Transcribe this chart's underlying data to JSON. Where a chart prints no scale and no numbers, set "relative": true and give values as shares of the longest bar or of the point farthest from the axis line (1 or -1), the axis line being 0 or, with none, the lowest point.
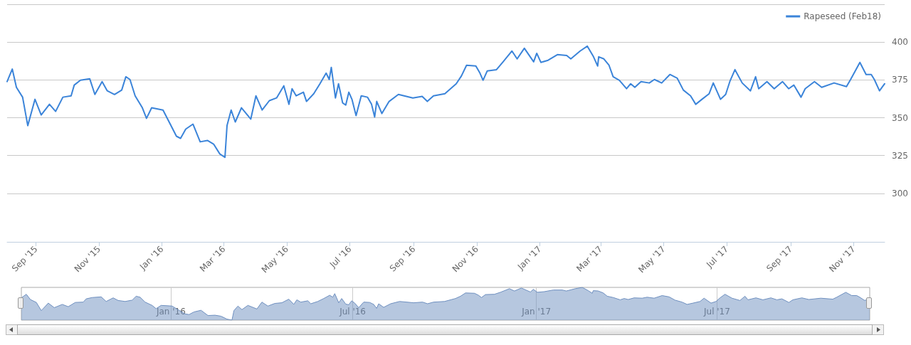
{
  "chart_data": [
    {
      "type": "line",
      "series": [
        {
          "name": "Rapeseed (Feb18)",
          "color": "#3b84d9",
          "x": [
            "2015-08-04",
            "2015-08-09",
            "2015-08-13",
            "2015-08-19",
            "2015-08-24",
            "2015-08-31",
            "2015-09-06",
            "2015-09-14",
            "2015-09-20",
            "2015-09-27",
            "2015-10-05",
            "2015-10-08",
            "2015-10-14",
            "2015-10-23",
            "2015-10-28",
            "2015-11-04",
            "2015-11-09",
            "2015-11-16",
            "2015-11-23",
            "2015-11-27",
            "2015-12-01",
            "2015-12-06",
            "2015-12-13",
            "2015-12-17",
            "2015-12-22",
            "2016-01-02",
            "2016-01-09",
            "2016-01-15",
            "2016-01-19",
            "2016-01-24",
            "2016-01-31",
            "2016-02-07",
            "2016-02-14",
            "2016-02-20",
            "2016-02-26",
            "2016-03-02",
            "2016-03-04",
            "2016-03-08",
            "2016-03-12",
            "2016-03-18",
            "2016-03-27",
            "2016-04-01",
            "2016-04-07",
            "2016-04-14",
            "2016-04-21",
            "2016-04-28",
            "2016-05-03",
            "2016-05-06",
            "2016-05-10",
            "2016-05-17",
            "2016-05-20",
            "2016-05-27",
            "2016-06-02",
            "2016-06-08",
            "2016-06-11",
            "2016-06-13",
            "2016-06-17",
            "2016-06-20",
            "2016-06-24",
            "2016-06-27",
            "2016-06-30",
            "2016-07-03",
            "2016-07-07",
            "2016-07-12",
            "2016-07-18",
            "2016-07-22",
            "2016-07-25",
            "2016-07-27",
            "2016-08-01",
            "2016-08-08",
            "2016-08-17",
            "2016-08-31",
            "2016-09-09",
            "2016-09-14",
            "2016-09-20",
            "2016-10-01",
            "2016-10-12",
            "2016-10-17",
            "2016-10-22",
            "2016-10-31",
            "2016-11-04",
            "2016-11-07",
            "2016-11-11",
            "2016-11-20",
            "2016-11-26",
            "2016-12-05",
            "2016-12-10",
            "2016-12-17",
            "2016-12-26",
            "2016-12-29",
            "2017-01-02",
            "2017-01-09",
            "2017-01-18",
            "2017-01-27",
            "2017-01-31",
            "2017-02-09",
            "2017-02-16",
            "2017-02-22",
            "2017-02-26",
            "2017-02-27",
            "2017-03-04",
            "2017-03-09",
            "2017-03-13",
            "2017-03-19",
            "2017-03-26",
            "2017-03-30",
            "2017-04-03",
            "2017-04-09",
            "2017-04-17",
            "2017-04-22",
            "2017-04-29",
            "2017-05-07",
            "2017-05-14",
            "2017-05-20",
            "2017-05-27",
            "2017-06-01",
            "2017-06-07",
            "2017-06-14",
            "2017-06-18",
            "2017-06-25",
            "2017-06-30",
            "2017-07-04",
            "2017-07-09",
            "2017-07-16",
            "2017-07-24",
            "2017-07-29",
            "2017-08-01",
            "2017-08-09",
            "2017-08-16",
            "2017-08-24",
            "2017-08-30",
            "2017-09-04",
            "2017-09-11",
            "2017-09-15",
            "2017-09-24",
            "2017-10-01",
            "2017-10-13",
            "2017-10-25",
            "2017-10-29",
            "2017-11-07",
            "2017-11-13",
            "2017-11-18",
            "2017-11-21",
            "2017-11-26",
            "2017-12-01"
          ],
          "values": [
            373.9,
            382.2,
            370.1,
            363.6,
            344.8,
            362.2,
            351.9,
            358.9,
            354.2,
            363.6,
            364.5,
            371.6,
            374.8,
            375.8,
            365.4,
            373.9,
            367.8,
            365.4,
            368.3,
            377.1,
            375.3,
            364.5,
            356.6,
            349.6,
            356.6,
            355.1,
            345.8,
            337.8,
            336.4,
            342.5,
            345.8,
            334.1,
            335.0,
            332.6,
            326.1,
            323.8,
            344.8,
            355.1,
            347.2,
            356.6,
            349.1,
            364.5,
            355.1,
            361.3,
            363.1,
            371.1,
            358.9,
            369.2,
            364.5,
            366.9,
            360.8,
            365.9,
            372.5,
            379.5,
            375.3,
            383.3,
            363.1,
            372.5,
            359.8,
            358.4,
            366.9,
            362.2,
            351.4,
            364.5,
            363.6,
            358.9,
            350.5,
            360.8,
            352.8,
            360.8,
            365.4,
            363.1,
            364.1,
            360.8,
            364.5,
            365.9,
            372.5,
            377.6,
            384.7,
            384.2,
            379.5,
            374.8,
            380.9,
            381.8,
            386.6,
            394.1,
            388.9,
            395.9,
            387.0,
            392.6,
            386.6,
            388.0,
            391.7,
            391.2,
            388.9,
            394.1,
            397.3,
            390.3,
            384.2,
            390.3,
            388.9,
            384.7,
            377.1,
            374.8,
            369.2,
            372.5,
            370.1,
            373.9,
            373.0,
            375.3,
            373.0,
            378.6,
            376.2,
            368.3,
            364.5,
            358.9,
            362.2,
            365.9,
            373.0,
            362.2,
            365.4,
            373.9,
            381.8,
            373.0,
            367.8,
            377.1,
            369.2,
            373.9,
            369.2,
            373.9,
            369.2,
            371.6,
            363.6,
            369.2,
            373.9,
            370.1,
            373.0,
            370.6,
            375.3,
            386.6,
            378.6,
            378.6,
            375.3,
            367.8,
            372.5
          ]
        }
      ],
      "xlim": [
        "2015-08-04",
        "2017-12-01"
      ],
      "xticks": [
        {
          "value": "2015-09-01",
          "label": "Sep '15"
        },
        {
          "value": "2015-11-01",
          "label": "Nov '15"
        },
        {
          "value": "2016-01-01",
          "label": "Jan '16"
        },
        {
          "value": "2016-03-01",
          "label": "Mar '16"
        },
        {
          "value": "2016-05-01",
          "label": "May '16"
        },
        {
          "value": "2016-07-01",
          "label": "Jul '16"
        },
        {
          "value": "2016-09-01",
          "label": "Sep '16"
        },
        {
          "value": "2016-11-01",
          "label": "Nov '16"
        },
        {
          "value": "2017-01-01",
          "label": "Jan '17"
        },
        {
          "value": "2017-03-01",
          "label": "Mar '17"
        },
        {
          "value": "2017-05-01",
          "label": "May '17"
        },
        {
          "value": "2017-07-01",
          "label": "Jul '17"
        },
        {
          "value": "2017-09-01",
          "label": "Sep '17"
        },
        {
          "value": "2017-11-01",
          "label": "Nov '17"
        }
      ],
      "ylim": [
        268,
        425
      ],
      "yticks": [
        {
          "value": 425,
          "label": null
        },
        400,
        375,
        350,
        325,
        300
      ],
      "grid": "y",
      "legend": "top right",
      "marker": "none",
      "line_style": "solid"
    },
    {
      "type": "area",
      "series": [
        {
          "color": "#6e8fbf",
          "x": [
            "2015-08-04",
            "2015-08-09",
            "2015-08-13",
            "2015-08-19",
            "2015-08-24",
            "2015-08-31",
            "2015-09-06",
            "2015-09-14",
            "2015-09-20",
            "2015-09-27",
            "2015-10-05",
            "2015-10-08",
            "2015-10-14",
            "2015-10-23",
            "2015-10-28",
            "2015-11-04",
            "2015-11-09",
            "2015-11-16",
            "2015-11-23",
            "2015-11-27",
            "2015-12-01",
            "2015-12-06",
            "2015-12-13",
            "2015-12-17",
            "2015-12-22",
            "2016-01-02",
            "2016-01-09",
            "2016-01-15",
            "2016-01-19",
            "2016-01-24",
            "2016-01-31",
            "2016-02-07",
            "2016-02-14",
            "2016-02-20",
            "2016-02-26",
            "2016-03-02",
            "2016-03-04",
            "2016-03-08",
            "2016-03-12",
            "2016-03-18",
            "2016-03-27",
            "2016-04-01",
            "2016-04-07",
            "2016-04-14",
            "2016-04-21",
            "2016-04-28",
            "2016-05-03",
            "2016-05-06",
            "2016-05-10",
            "2016-05-17",
            "2016-05-20",
            "2016-05-27",
            "2016-06-02",
            "2016-06-08",
            "2016-06-11",
            "2016-06-13",
            "2016-06-17",
            "2016-06-20",
            "2016-06-24",
            "2016-06-27",
            "2016-06-30",
            "2016-07-03",
            "2016-07-07",
            "2016-07-12",
            "2016-07-18",
            "2016-07-22",
            "2016-07-25",
            "2016-07-27",
            "2016-08-01",
            "2016-08-08",
            "2016-08-17",
            "2016-08-31",
            "2016-09-09",
            "2016-09-14",
            "2016-09-20",
            "2016-10-01",
            "2016-10-12",
            "2016-10-17",
            "2016-10-22",
            "2016-10-31",
            "2016-11-04",
            "2016-11-07",
            "2016-11-11",
            "2016-11-20",
            "2016-11-26",
            "2016-12-05",
            "2016-12-10",
            "2016-12-17",
            "2016-12-26",
            "2016-12-29",
            "2017-01-02",
            "2017-01-09",
            "2017-01-18",
            "2017-01-27",
            "2017-01-31",
            "2017-02-09",
            "2017-02-16",
            "2017-02-22",
            "2017-02-26",
            "2017-02-27",
            "2017-03-04",
            "2017-03-09",
            "2017-03-13",
            "2017-03-19",
            "2017-03-26",
            "2017-03-30",
            "2017-04-03",
            "2017-04-09",
            "2017-04-17",
            "2017-04-22",
            "2017-04-29",
            "2017-05-07",
            "2017-05-14",
            "2017-05-20",
            "2017-05-27",
            "2017-06-01",
            "2017-06-07",
            "2017-06-14",
            "2017-06-18",
            "2017-06-25",
            "2017-06-30",
            "2017-07-04",
            "2017-07-09",
            "2017-07-16",
            "2017-07-24",
            "2017-07-29",
            "2017-08-01",
            "2017-08-09",
            "2017-08-16",
            "2017-08-24",
            "2017-08-30",
            "2017-09-04",
            "2017-09-11",
            "2017-09-15",
            "2017-09-24",
            "2017-10-01",
            "2017-10-13",
            "2017-10-25",
            "2017-10-29",
            "2017-11-07",
            "2017-11-13",
            "2017-11-18",
            "2017-11-21",
            "2017-11-26",
            "2017-12-01"
          ],
          "values": [
            0.68,
            0.79,
            0.63,
            0.54,
            0.29,
            0.52,
            0.38,
            0.48,
            0.41,
            0.54,
            0.55,
            0.65,
            0.69,
            0.71,
            0.57,
            0.68,
            0.6,
            0.57,
            0.61,
            0.73,
            0.7,
            0.55,
            0.45,
            0.35,
            0.45,
            0.43,
            0.3,
            0.19,
            0.17,
            0.25,
            0.3,
            0.14,
            0.15,
            0.12,
            0.03,
            0,
            0.29,
            0.43,
            0.32,
            0.45,
            0.34,
            0.55,
            0.43,
            0.51,
            0.53,
            0.64,
            0.48,
            0.62,
            0.55,
            0.59,
            0.5,
            0.57,
            0.66,
            0.76,
            0.7,
            0.81,
            0.53,
            0.66,
            0.49,
            0.47,
            0.59,
            0.52,
            0.38,
            0.55,
            0.54,
            0.48,
            0.36,
            0.5,
            0.39,
            0.5,
            0.57,
            0.53,
            0.55,
            0.5,
            0.55,
            0.57,
            0.66,
            0.73,
            0.83,
            0.82,
            0.76,
            0.69,
            0.78,
            0.79,
            0.85,
            0.96,
            0.89,
            0.98,
            0.86,
            0.94,
            0.85,
            0.87,
            0.92,
            0.92,
            0.89,
            0.96,
            1,
            0.9,
            0.82,
            0.9,
            0.89,
            0.83,
            0.73,
            0.69,
            0.62,
            0.66,
            0.63,
            0.68,
            0.67,
            0.7,
            0.67,
            0.75,
            0.71,
            0.61,
            0.55,
            0.48,
            0.52,
            0.57,
            0.67,
            0.52,
            0.57,
            0.68,
            0.79,
            0.67,
            0.6,
            0.73,
            0.62,
            0.68,
            0.62,
            0.68,
            0.62,
            0.65,
            0.54,
            0.62,
            0.68,
            0.63,
            0.67,
            0.64,
            0.7,
            0.85,
            0.75,
            0.75,
            0.7,
            0.6,
            0.66
          ]
        }
      ],
      "relative": true,
      "xlim": [
        "2015-08-04",
        "2017-12-01"
      ],
      "xticks": [
        {
          "value": "2016-01-01",
          "label": "Jan '16"
        },
        {
          "value": "2016-07-01",
          "label": "Jul '16"
        },
        {
          "value": "2017-01-01",
          "label": "Jan '17"
        },
        {
          "value": "2017-07-01",
          "label": "Jul '17"
        }
      ],
      "tick_labels": "x",
      "grid": "x",
      "legend": false,
      "marker": "none"
    }
  ]
}
